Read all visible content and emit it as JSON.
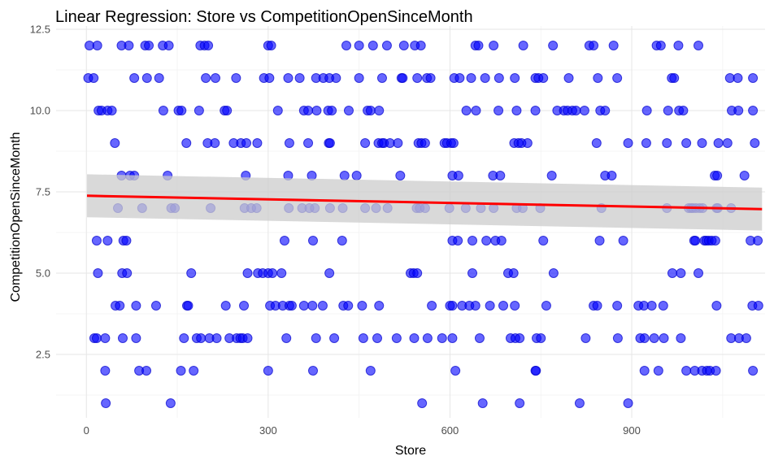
{
  "chart_data": {
    "type": "scatter",
    "title": "Linear Regression: Store vs CompetitionOpenSinceMonth",
    "xlabel": "Store",
    "ylabel": "CompetitionOpenSinceMonth",
    "xlim": [
      -50,
      1120
    ],
    "ylim": [
      0.55,
      12.6
    ],
    "x_ticks": [
      0,
      300,
      600,
      900
    ],
    "x_tick_labels": [
      "0",
      "300",
      "600",
      "900"
    ],
    "y_ticks": [
      2.5,
      5.0,
      7.5,
      10.0,
      12.5
    ],
    "y_tick_labels": [
      "2.5",
      "5.0",
      "7.5",
      "10.0",
      "12.5"
    ],
    "grid": true,
    "point_color": "#0000ff",
    "line_color": "#ff0000",
    "band_color": "#cccccc",
    "regression": {
      "x": [
        1,
        1115
      ],
      "y": [
        7.38,
        6.97
      ],
      "ci_lower": [
        6.72,
        6.31
      ],
      "ci_upper": [
        8.04,
        7.63
      ]
    },
    "points_by_month": [
      {
        "y": 12,
        "x": [
          5,
          18,
          58,
          70,
          97,
          103,
          126,
          136,
          188,
          195,
          201,
          300,
          305,
          429,
          450,
          473,
          496,
          524,
          542,
          552,
          642,
          647,
          672,
          721,
          770,
          830,
          837,
          870,
          941,
          948,
          977,
          1010
        ]
      },
      {
        "y": 11,
        "x": [
          3,
          12,
          79,
          100,
          120,
          197,
          213,
          247,
          293,
          302,
          333,
          352,
          379,
          391,
          401,
          412,
          450,
          488,
          520,
          522,
          546,
          562,
          568,
          607,
          616,
          635,
          658,
          681,
          707,
          741,
          746,
          754,
          796,
          844,
          876,
          966,
          970,
          1062,
          1075,
          1100
        ]
      },
      {
        "y": 10,
        "x": [
          20,
          25,
          35,
          42,
          127,
          152,
          157,
          186,
          228,
          232,
          316,
          359,
          366,
          380,
          399,
          405,
          433,
          464,
          469,
          483,
          627,
          643,
          680,
          710,
          741,
          777,
          788,
          794,
          802,
          808,
          822,
          848,
          856,
          925,
          960,
          978,
          985,
          1065,
          1076,
          1100
        ]
      },
      {
        "y": 9,
        "x": [
          47,
          165,
          200,
          212,
          243,
          255,
          264,
          282,
          335,
          366,
          400,
          402,
          460,
          482,
          488,
          491,
          501,
          514,
          548,
          553,
          559,
          591,
          595,
          602,
          606,
          706,
          713,
          718,
          728,
          842,
          894,
          924,
          958,
          990,
          1016,
          1043,
          1058,
          1103
        ]
      },
      {
        "y": 8,
        "x": [
          58,
          72,
          79,
          134,
          263,
          333,
          372,
          426,
          446,
          518,
          604,
          614,
          671,
          683,
          768,
          856,
          867,
          1037,
          1041,
          1086
        ]
      },
      {
        "y": 7,
        "x": [
          52,
          92,
          140,
          146,
          205,
          261,
          272,
          281,
          334,
          356,
          368,
          377,
          402,
          423,
          460,
          478,
          497,
          545,
          550,
          559,
          599,
          626,
          651,
          672,
          710,
          720,
          749,
          850,
          958,
          994,
          998,
          1001,
          1006,
          1012,
          1017,
          1040,
          1042,
          1064
        ]
      },
      {
        "y": 6,
        "x": [
          17,
          35,
          61,
          66,
          327,
          374,
          422,
          604,
          613,
          637,
          660,
          675,
          685,
          754,
          847,
          886,
          1003,
          1005,
          1020,
          1023,
          1027,
          1032,
          1038,
          1096,
          1108
        ]
      },
      {
        "y": 5,
        "x": [
          19,
          59,
          67,
          173,
          266,
          283,
          291,
          300,
          307,
          322,
          401,
          535,
          540,
          546,
          637,
          696,
          705,
          771,
          967,
          981,
          1010
        ]
      },
      {
        "y": 4,
        "x": [
          48,
          55,
          82,
          115,
          166,
          168,
          230,
          260,
          303,
          312,
          324,
          335,
          339,
          359,
          373,
          390,
          424,
          432,
          455,
          483,
          570,
          600,
          604,
          620,
          632,
          642,
          666,
          688,
          707,
          759,
          837,
          843,
          876,
          911,
          920,
          933,
          952,
          1040,
          1099,
          1109
        ]
      },
      {
        "y": 3,
        "x": [
          13,
          17,
          31,
          60,
          82,
          161,
          182,
          189,
          203,
          215,
          236,
          248,
          254,
          258,
          266,
          330,
          379,
          409,
          457,
          480,
          512,
          541,
          563,
          587,
          604,
          649,
          700,
          708,
          715,
          743,
          750,
          824,
          877,
          914,
          921,
          937,
          953,
          981,
          1064,
          1077,
          1089
        ]
      },
      {
        "y": 2,
        "x": [
          31,
          87,
          99,
          156,
          177,
          300,
          374,
          469,
          609,
          741,
          742,
          921,
          944,
          990,
          1004,
          1016,
          1024,
          1029,
          1039,
          1100
        ]
      },
      {
        "y": 1,
        "x": [
          32,
          139,
          554,
          654,
          715,
          814,
          894
        ]
      }
    ]
  }
}
